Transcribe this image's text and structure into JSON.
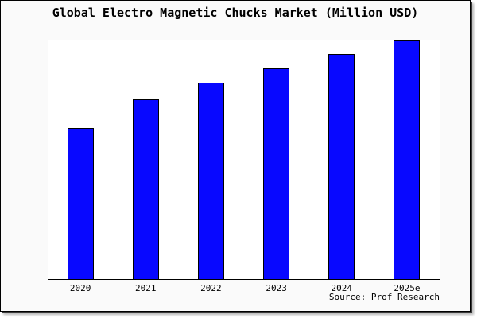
{
  "title": "Global Electro Magnetic Chucks Market (Million USD)",
  "source_credit": "Source: Prof Research",
  "colors": {
    "bar_fill": "#0808ff",
    "bar_border": "#000000",
    "card_background": "#fafafa",
    "plot_background": "#ffffff",
    "axis_line": "#000000",
    "text": "#000000"
  },
  "chart_data": {
    "type": "bar",
    "title": "Global Electro Magnetic Chucks Market (Million USD)",
    "categories": [
      "2020",
      "2021",
      "2022",
      "2023",
      "2024",
      "2025e"
    ],
    "values": [
      63,
      75,
      82,
      88,
      94,
      100
    ],
    "values_note": "No numeric y-axis shown in image; values are relative estimates indexed to 2025e = 100, read from bar pixel heights",
    "xlabel": "",
    "ylabel": "",
    "ylim": [
      0,
      100
    ],
    "grid": false,
    "legend": null,
    "source": "Source: Prof Research"
  }
}
